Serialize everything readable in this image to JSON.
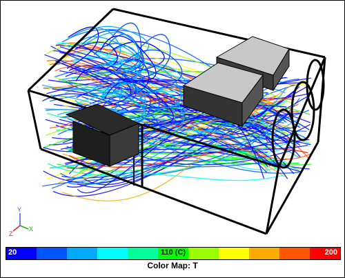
{
  "colormap": {
    "min_label": "20",
    "mid_label": "110 (C)",
    "max_label": "200",
    "caption": "Color Map: T",
    "colors": [
      "#0000ff",
      "#0055ff",
      "#00aaff",
      "#00ffff",
      "#00ff99",
      "#00ff00",
      "#99ff00",
      "#ffff00",
      "#ffaa00",
      "#ff5500",
      "#ff0000"
    ]
  },
  "axes": {
    "x_label": "X",
    "y_label": "Y",
    "z_label": "Z"
  }
}
